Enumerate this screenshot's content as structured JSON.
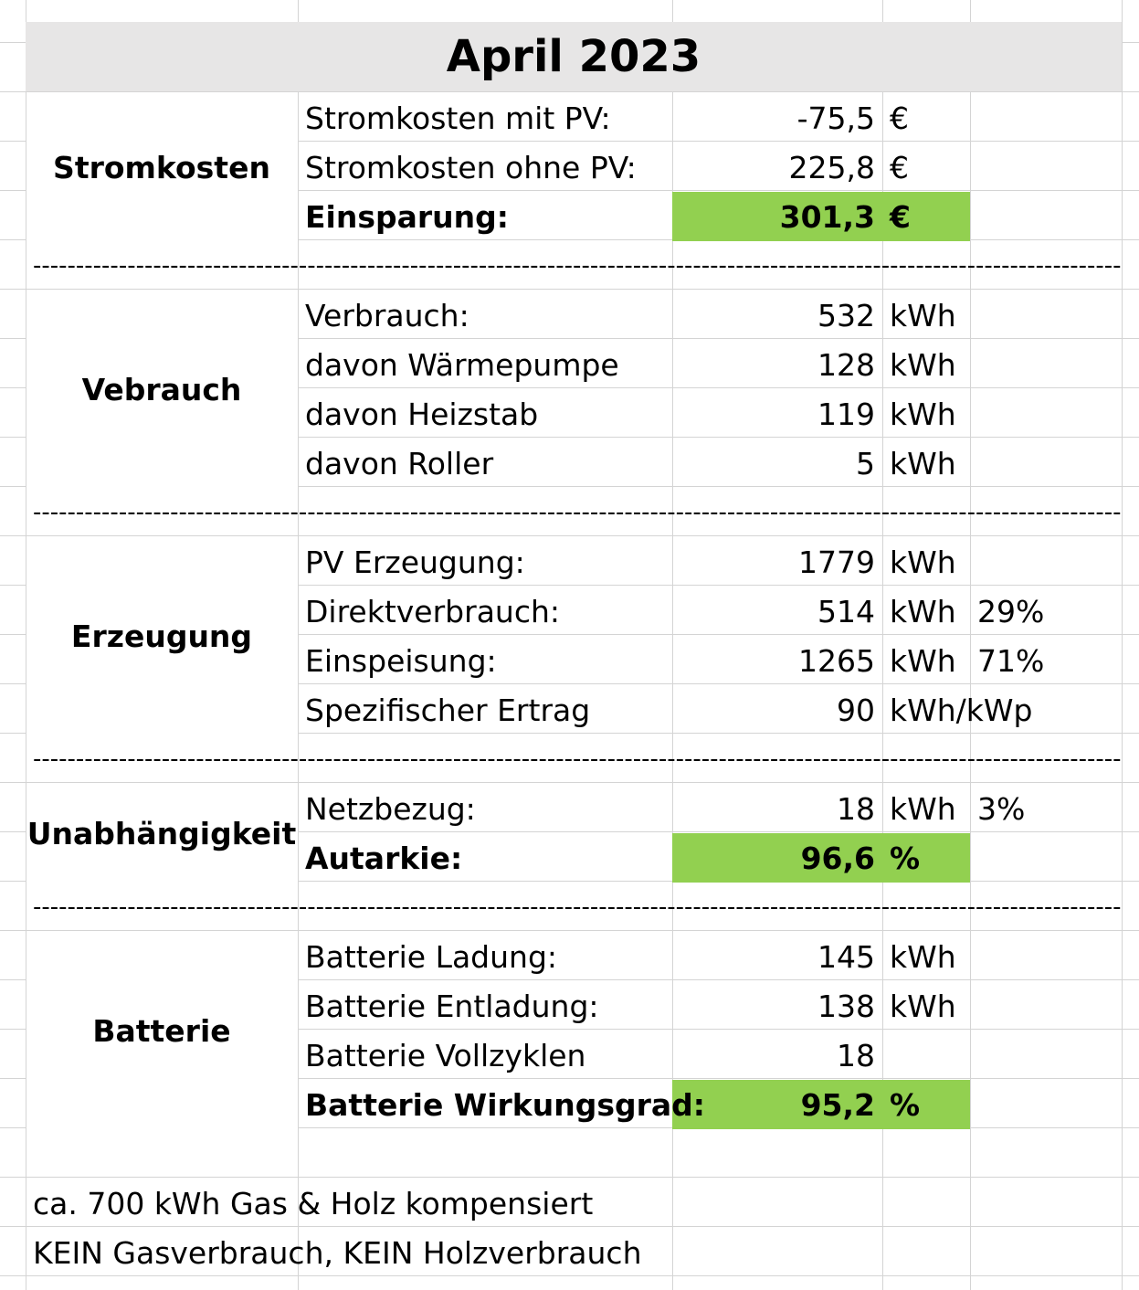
{
  "title": "April 2023",
  "colors": {
    "highlight": "#92d050",
    "title_fill": "#e7e6e6",
    "gridline": "#d4d4d4"
  },
  "sections": [
    {
      "name": "Stromkosten",
      "rows": [
        {
          "label": "Stromkosten mit PV:",
          "value": "-75,5",
          "unit": "€",
          "pct": "",
          "bold": false,
          "highlight": false
        },
        {
          "label": "Stromkosten ohne PV:",
          "value": "225,8",
          "unit": "€",
          "pct": "",
          "bold": false,
          "highlight": false
        },
        {
          "label": "Einsparung:",
          "value": "301,3",
          "unit": "€",
          "pct": "",
          "bold": true,
          "highlight": true
        }
      ]
    },
    {
      "name": "Vebrauch",
      "rows": [
        {
          "label": "Verbrauch:",
          "value": "532",
          "unit": "kWh",
          "pct": "",
          "bold": false,
          "highlight": false
        },
        {
          "label": "davon Wärmepumpe",
          "value": "128",
          "unit": "kWh",
          "pct": "",
          "bold": false,
          "highlight": false
        },
        {
          "label": "davon Heizstab",
          "value": "119",
          "unit": "kWh",
          "pct": "",
          "bold": false,
          "highlight": false
        },
        {
          "label": "davon Roller",
          "value": "5",
          "unit": "kWh",
          "pct": "",
          "bold": false,
          "highlight": false
        }
      ]
    },
    {
      "name": "Erzeugung",
      "rows": [
        {
          "label": "PV Erzeugung:",
          "value": "1779",
          "unit": "kWh",
          "pct": "",
          "bold": false,
          "highlight": false
        },
        {
          "label": "Direktverbrauch:",
          "value": "514",
          "unit": "kWh",
          "pct": "29%",
          "bold": false,
          "highlight": false
        },
        {
          "label": "Einspeisung:",
          "value": "1265",
          "unit": "kWh",
          "pct": "71%",
          "bold": false,
          "highlight": false
        },
        {
          "label": "Spezifischer Ertrag",
          "value": "90",
          "unit": "kWh/kWp",
          "pct": "",
          "bold": false,
          "highlight": false
        }
      ]
    },
    {
      "name": "Unabhängigkeit",
      "rows": [
        {
          "label": "Netzbezug:",
          "value": "18",
          "unit": "kWh",
          "pct": "3%",
          "bold": false,
          "highlight": false
        },
        {
          "label": "Autarkie:",
          "value": "96,6",
          "unit": "%",
          "pct": "",
          "bold": true,
          "highlight": true
        }
      ]
    },
    {
      "name": "Batterie",
      "rows": [
        {
          "label": "Batterie Ladung:",
          "value": "145",
          "unit": "kWh",
          "pct": "",
          "bold": false,
          "highlight": false
        },
        {
          "label": "Batterie Entladung:",
          "value": "138",
          "unit": "kWh",
          "pct": "",
          "bold": false,
          "highlight": false
        },
        {
          "label": "Batterie Vollzyklen",
          "value": "18",
          "unit": "",
          "pct": "",
          "bold": false,
          "highlight": false
        },
        {
          "label": "Batterie Wirkungsgrad:",
          "value": "95,2",
          "unit": "%",
          "pct": "",
          "bold": true,
          "highlight": true
        }
      ]
    }
  ],
  "separator": "---------------------------------------------------------------------------------------------------------------------------------------------",
  "notes": [
    "ca. 700 kWh Gas & Holz kompensiert",
    "KEIN Gasverbrauch, KEIN Holzverbrauch"
  ]
}
